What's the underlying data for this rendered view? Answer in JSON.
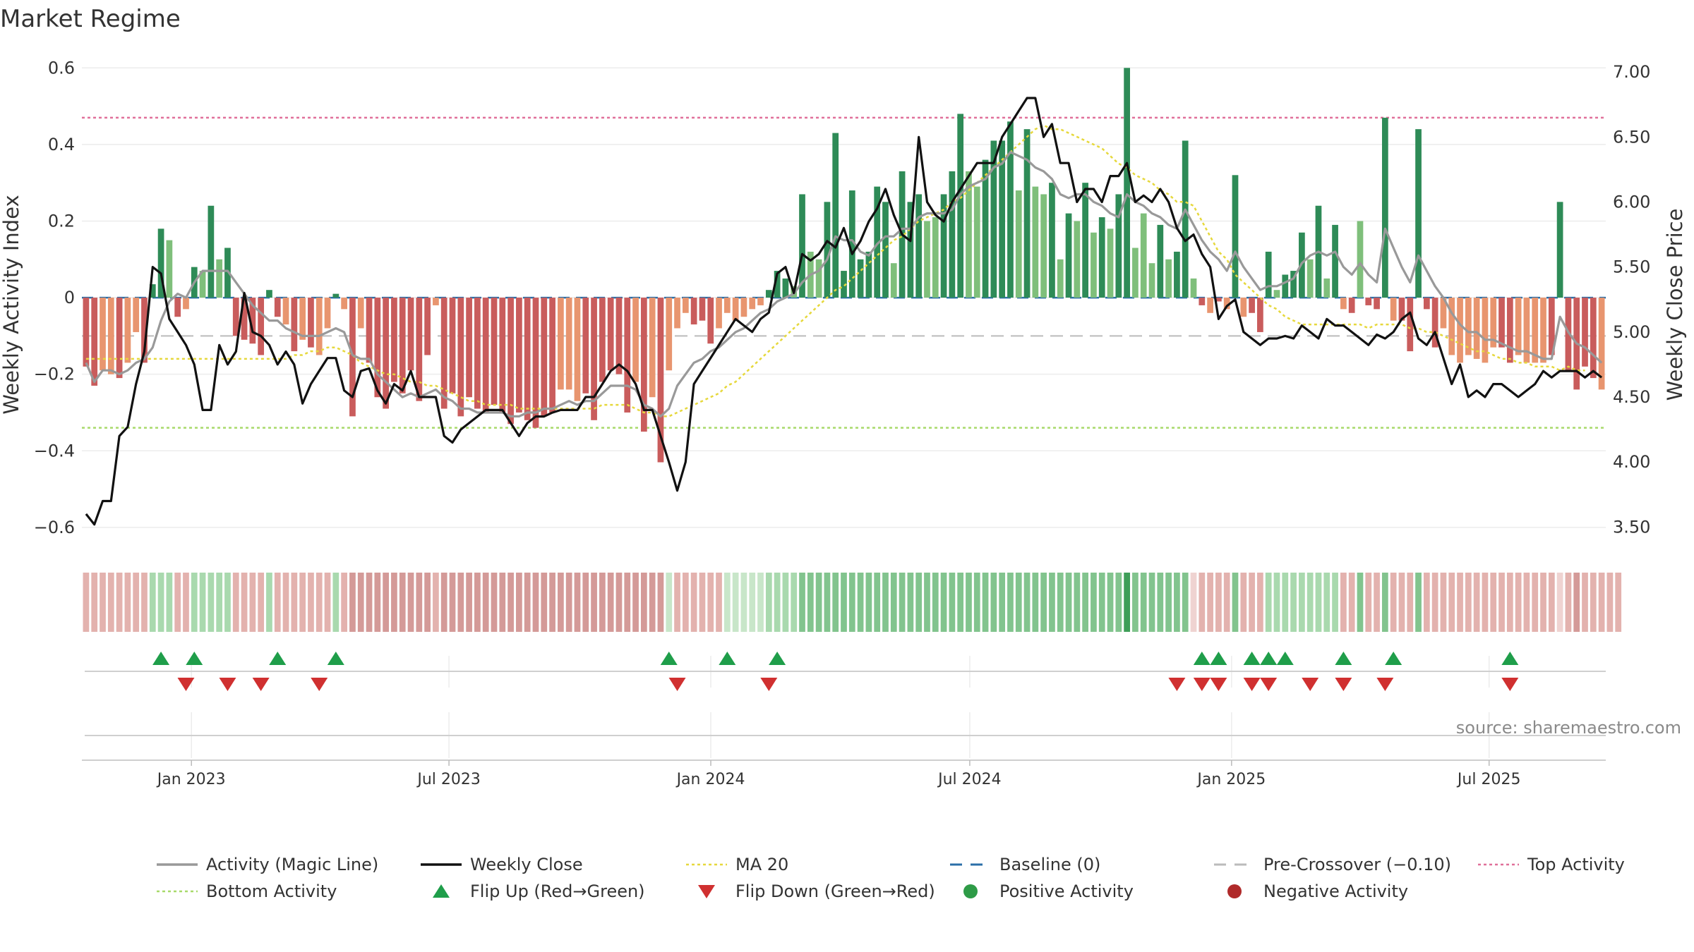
{
  "chart_data": {
    "type": "bar",
    "title": "Market Regime",
    "ylabel": "Weekly Activity Index",
    "y2label": "Weekly Close Price",
    "source": "source: sharemaestro.com",
    "ylim": [
      -0.65,
      0.63
    ],
    "y2lim": [
      3.35,
      7.12
    ],
    "yticks": [
      -0.6,
      -0.4,
      -0.2,
      0,
      0.2,
      0.4,
      0.6
    ],
    "ytick_labels": [
      "−0.6",
      "−0.4",
      "−0.2",
      "0",
      "0.2",
      "0.4",
      "0.6"
    ],
    "y2ticks": [
      3.5,
      4.0,
      4.5,
      5.0,
      5.5,
      6.0,
      6.5,
      7.0
    ],
    "y2tick_labels": [
      "3.50",
      "4.00",
      "4.50",
      "5.00",
      "5.50",
      "6.00",
      "6.50",
      "7.00"
    ],
    "x_start": "2022-10-16",
    "x_end": "2025-09-21",
    "xticks": [
      {
        "date": "2023-01-01",
        "label": "Jan 2023"
      },
      {
        "date": "2023-07-01",
        "label": "Jul 2023"
      },
      {
        "date": "2024-01-01",
        "label": "Jan 2024"
      },
      {
        "date": "2024-07-01",
        "label": "Jul 2024"
      },
      {
        "date": "2025-01-01",
        "label": "Jan 2025"
      },
      {
        "date": "2025-07-01",
        "label": "Jul 2025"
      }
    ],
    "top_activity": 0.47,
    "bottom_activity": -0.34,
    "pre_crossover": -0.1,
    "baseline": 0,
    "colors": {
      "pos_strong": "#2e8b57",
      "pos_light": "#7fbf7b",
      "neg_strong": "#c95c5c",
      "neg_light": "#e8956f",
      "magic": "#999999",
      "close": "#111111",
      "ma": "#e6d83c",
      "baseline": "#2b6fa8",
      "precross": "#bbbbbb",
      "top": "#e0709a",
      "bottom": "#a8d96a",
      "flip_up": "#1f9e4a",
      "flip_down": "#d03030"
    },
    "activity": [
      -0.18,
      -0.23,
      -0.19,
      -0.2,
      -0.21,
      -0.17,
      -0.09,
      -0.17,
      0.035,
      0.18,
      0.15,
      -0.05,
      -0.03,
      0.08,
      0.07,
      0.24,
      0.1,
      0.13,
      -0.1,
      -0.11,
      -0.12,
      -0.15,
      0.02,
      -0.05,
      -0.07,
      -0.14,
      -0.11,
      -0.13,
      -0.15,
      -0.08,
      0.01,
      -0.03,
      -0.31,
      -0.08,
      -0.17,
      -0.26,
      -0.29,
      -0.22,
      -0.25,
      -0.19,
      -0.27,
      -0.15,
      -0.02,
      -0.29,
      -0.25,
      -0.31,
      -0.26,
      -0.29,
      -0.3,
      -0.28,
      -0.3,
      -0.33,
      -0.3,
      -0.32,
      -0.34,
      -0.31,
      -0.3,
      -0.24,
      -0.24,
      -0.27,
      -0.25,
      -0.32,
      -0.22,
      -0.19,
      -0.2,
      -0.3,
      -0.22,
      -0.35,
      -0.26,
      -0.43,
      -0.19,
      -0.08,
      -0.04,
      -0.07,
      -0.06,
      -0.12,
      -0.08,
      -0.04,
      -0.06,
      -0.05,
      -0.03,
      -0.02,
      0.02,
      0.07,
      0.05,
      0.03,
      0.27,
      0.12,
      0.1,
      0.25,
      0.43,
      0.07,
      0.28,
      0.1,
      0.12,
      0.29,
      0.25,
      0.09,
      0.33,
      0.25,
      0.27,
      0.2,
      0.21,
      0.27,
      0.33,
      0.48,
      0.33,
      0.29,
      0.36,
      0.41,
      0.41,
      0.46,
      0.28,
      0.44,
      0.29,
      0.27,
      0.3,
      0.1,
      0.22,
      0.2,
      0.3,
      0.17,
      0.21,
      0.18,
      0.27,
      0.6,
      0.13,
      0.22,
      0.09,
      0.19,
      0.1,
      0.12,
      0.41,
      0.05,
      -0.02,
      -0.04,
      -0.01,
      -0.03,
      0.32,
      -0.05,
      -0.04,
      -0.09,
      0.12,
      0.02,
      0.06,
      0.07,
      0.17,
      0.1,
      0.24,
      0.05,
      0.19,
      -0.03,
      -0.04,
      0.2,
      -0.02,
      -0.03,
      0.47,
      -0.06,
      -0.06,
      -0.14,
      0.44,
      -0.03,
      -0.13,
      -0.08,
      -0.15,
      -0.17,
      -0.15,
      -0.16,
      -0.17,
      -0.13,
      -0.13,
      -0.17,
      -0.15,
      -0.17,
      -0.17,
      -0.17,
      -0.15,
      0.25,
      -0.19,
      -0.24,
      -0.18,
      -0.21,
      -0.24
    ],
    "activity_strong": [
      true,
      true,
      false,
      false,
      true,
      false,
      false,
      true,
      true,
      true,
      false,
      true,
      false,
      true,
      false,
      true,
      false,
      true,
      true,
      true,
      true,
      true,
      true,
      true,
      false,
      true,
      false,
      true,
      false,
      false,
      true,
      false,
      true,
      false,
      true,
      true,
      true,
      true,
      true,
      true,
      true,
      true,
      false,
      true,
      true,
      true,
      true,
      true,
      true,
      true,
      true,
      true,
      true,
      true,
      true,
      true,
      true,
      false,
      false,
      false,
      true,
      true,
      true,
      true,
      true,
      true,
      false,
      true,
      false,
      true,
      false,
      false,
      false,
      true,
      true,
      true,
      false,
      false,
      false,
      false,
      false,
      false,
      true,
      true,
      true,
      false,
      true,
      false,
      false,
      true,
      true,
      true,
      true,
      true,
      true,
      true,
      true,
      false,
      true,
      true,
      true,
      false,
      false,
      true,
      true,
      true,
      false,
      false,
      true,
      true,
      true,
      true,
      false,
      true,
      false,
      false,
      true,
      false,
      true,
      false,
      true,
      false,
      true,
      false,
      true,
      true,
      false,
      false,
      false,
      true,
      false,
      true,
      true,
      false,
      true,
      false,
      true,
      false,
      true,
      false,
      true,
      true,
      true,
      false,
      true,
      true,
      true,
      false,
      true,
      false,
      true,
      false,
      true,
      false,
      true,
      true,
      true,
      false,
      true,
      true,
      true,
      true,
      true,
      false,
      false,
      false,
      false,
      false,
      false,
      false,
      true,
      true,
      false,
      false,
      false,
      false,
      true,
      true,
      true,
      true,
      true,
      true
    ],
    "magic_line": [
      -0.17,
      -0.22,
      -0.19,
      -0.19,
      -0.2,
      -0.19,
      -0.17,
      -0.16,
      -0.13,
      -0.06,
      -0.01,
      0.01,
      0.0,
      0.04,
      0.07,
      0.07,
      0.07,
      0.07,
      0.04,
      0.01,
      -0.02,
      -0.04,
      -0.06,
      -0.06,
      -0.08,
      -0.09,
      -0.1,
      -0.1,
      -0.1,
      -0.09,
      -0.08,
      -0.09,
      -0.15,
      -0.16,
      -0.16,
      -0.2,
      -0.22,
      -0.24,
      -0.26,
      -0.25,
      -0.26,
      -0.25,
      -0.24,
      -0.26,
      -0.27,
      -0.29,
      -0.29,
      -0.3,
      -0.3,
      -0.3,
      -0.3,
      -0.31,
      -0.31,
      -0.3,
      -0.3,
      -0.29,
      -0.29,
      -0.28,
      -0.27,
      -0.28,
      -0.27,
      -0.27,
      -0.25,
      -0.23,
      -0.23,
      -0.23,
      -0.24,
      -0.28,
      -0.29,
      -0.31,
      -0.29,
      -0.23,
      -0.2,
      -0.17,
      -0.16,
      -0.14,
      -0.13,
      -0.11,
      -0.09,
      -0.08,
      -0.06,
      -0.04,
      -0.03,
      -0.01,
      0.0,
      0.01,
      0.04,
      0.06,
      0.07,
      0.1,
      0.16,
      0.15,
      0.15,
      0.12,
      0.11,
      0.14,
      0.16,
      0.16,
      0.18,
      0.18,
      0.21,
      0.22,
      0.22,
      0.22,
      0.23,
      0.27,
      0.29,
      0.3,
      0.31,
      0.34,
      0.35,
      0.38,
      0.37,
      0.36,
      0.34,
      0.33,
      0.31,
      0.27,
      0.26,
      0.27,
      0.27,
      0.25,
      0.24,
      0.22,
      0.21,
      0.27,
      0.25,
      0.24,
      0.22,
      0.21,
      0.19,
      0.18,
      0.23,
      0.19,
      0.15,
      0.12,
      0.1,
      0.07,
      0.12,
      0.08,
      0.05,
      0.02,
      0.03,
      0.03,
      0.04,
      0.05,
      0.09,
      0.11,
      0.12,
      0.11,
      0.12,
      0.08,
      0.06,
      0.09,
      0.06,
      0.04,
      0.18,
      0.13,
      0.08,
      0.04,
      0.11,
      0.07,
      0.03,
      0.0,
      -0.04,
      -0.07,
      -0.09,
      -0.09,
      -0.11,
      -0.11,
      -0.12,
      -0.13,
      -0.14,
      -0.14,
      -0.15,
      -0.16,
      -0.16,
      -0.05,
      -0.09,
      -0.12,
      -0.13,
      -0.15,
      -0.17
    ],
    "weekly_close": [
      3.6,
      3.52,
      3.7,
      3.7,
      4.2,
      4.27,
      4.6,
      4.85,
      5.5,
      5.45,
      5.1,
      5.0,
      4.9,
      4.75,
      4.4,
      4.4,
      4.9,
      4.75,
      4.85,
      5.3,
      5.0,
      4.97,
      4.9,
      4.75,
      4.85,
      4.75,
      4.45,
      4.6,
      4.7,
      4.8,
      4.8,
      4.55,
      4.5,
      4.7,
      4.72,
      4.55,
      4.45,
      4.6,
      4.55,
      4.7,
      4.5,
      4.5,
      4.5,
      4.2,
      4.15,
      4.25,
      4.3,
      4.35,
      4.4,
      4.4,
      4.4,
      4.3,
      4.2,
      4.3,
      4.35,
      4.35,
      4.38,
      4.4,
      4.4,
      4.4,
      4.5,
      4.5,
      4.6,
      4.7,
      4.75,
      4.7,
      4.6,
      4.4,
      4.4,
      4.2,
      4.0,
      3.78,
      4.0,
      4.6,
      4.7,
      4.8,
      4.9,
      5.0,
      5.1,
      5.05,
      5.0,
      5.1,
      5.15,
      5.45,
      5.5,
      5.3,
      5.6,
      5.55,
      5.6,
      5.7,
      5.65,
      5.8,
      5.6,
      5.7,
      5.85,
      5.95,
      6.1,
      5.9,
      5.75,
      5.7,
      6.5,
      6.0,
      5.9,
      5.85,
      6.0,
      6.1,
      6.2,
      6.3,
      6.3,
      6.3,
      6.5,
      6.6,
      6.7,
      6.8,
      6.8,
      6.5,
      6.6,
      6.3,
      6.3,
      6.0,
      6.1,
      6.1,
      6.0,
      6.2,
      6.2,
      6.3,
      6.0,
      6.05,
      6.0,
      6.1,
      6.0,
      5.8,
      5.7,
      5.75,
      5.6,
      5.5,
      5.1,
      5.2,
      5.25,
      5.0,
      4.95,
      4.9,
      4.95,
      4.95,
      4.97,
      4.95,
      5.05,
      5.0,
      4.95,
      5.1,
      5.05,
      5.05,
      5.0,
      4.95,
      4.9,
      4.98,
      4.95,
      5.0,
      5.1,
      5.15,
      4.95,
      4.9,
      5.0,
      4.8,
      4.6,
      4.75,
      4.5,
      4.55,
      4.5,
      4.6,
      4.6,
      4.55,
      4.5,
      4.55,
      4.6,
      4.7,
      4.65,
      4.7,
      4.7,
      4.7,
      4.65,
      4.7,
      4.65
    ],
    "ma20": [
      -0.16,
      -0.16,
      -0.16,
      -0.16,
      -0.16,
      -0.16,
      -0.16,
      -0.16,
      -0.16,
      -0.16,
      -0.16,
      -0.16,
      -0.16,
      -0.16,
      -0.16,
      -0.16,
      -0.16,
      -0.16,
      -0.16,
      -0.16,
      -0.16,
      -0.16,
      -0.16,
      -0.16,
      -0.16,
      -0.15,
      -0.15,
      -0.14,
      -0.14,
      -0.13,
      -0.13,
      -0.14,
      -0.15,
      -0.17,
      -0.18,
      -0.19,
      -0.2,
      -0.2,
      -0.21,
      -0.22,
      -0.22,
      -0.23,
      -0.23,
      -0.24,
      -0.25,
      -0.26,
      -0.27,
      -0.27,
      -0.28,
      -0.28,
      -0.28,
      -0.28,
      -0.29,
      -0.29,
      -0.29,
      -0.29,
      -0.29,
      -0.29,
      -0.29,
      -0.29,
      -0.29,
      -0.29,
      -0.28,
      -0.28,
      -0.28,
      -0.28,
      -0.29,
      -0.3,
      -0.3,
      -0.31,
      -0.31,
      -0.3,
      -0.29,
      -0.28,
      -0.27,
      -0.26,
      -0.25,
      -0.23,
      -0.22,
      -0.2,
      -0.18,
      -0.16,
      -0.14,
      -0.12,
      -0.1,
      -0.08,
      -0.06,
      -0.04,
      -0.02,
      0.0,
      0.02,
      0.03,
      0.05,
      0.07,
      0.09,
      0.11,
      0.13,
      0.15,
      0.16,
      0.18,
      0.2,
      0.21,
      0.22,
      0.23,
      0.25,
      0.26,
      0.28,
      0.3,
      0.32,
      0.34,
      0.36,
      0.38,
      0.4,
      0.42,
      0.44,
      0.45,
      0.44,
      0.44,
      0.43,
      0.42,
      0.41,
      0.4,
      0.39,
      0.37,
      0.35,
      0.34,
      0.32,
      0.31,
      0.3,
      0.28,
      0.27,
      0.25,
      0.25,
      0.24,
      0.2,
      0.16,
      0.12,
      0.1,
      0.06,
      0.04,
      0.02,
      0.0,
      -0.02,
      -0.03,
      -0.05,
      -0.06,
      -0.07,
      -0.07,
      -0.07,
      -0.07,
      -0.07,
      -0.07,
      -0.07,
      -0.07,
      -0.08,
      -0.07,
      -0.07,
      -0.07,
      -0.07,
      -0.08,
      -0.08,
      -0.09,
      -0.09,
      -0.1,
      -0.11,
      -0.12,
      -0.13,
      -0.14,
      -0.14,
      -0.15,
      -0.16,
      -0.16,
      -0.17,
      -0.17,
      -0.18,
      -0.18,
      -0.18,
      -0.19,
      -0.18,
      -0.19,
      -0.19
    ],
    "regime_strip": [
      1,
      1,
      1,
      1,
      1,
      1,
      1,
      1,
      2,
      2,
      2,
      1,
      1,
      2,
      2,
      2,
      2,
      2,
      1,
      1,
      1,
      1,
      2,
      1,
      1,
      1,
      1,
      1,
      1,
      1,
      2,
      1,
      3,
      3,
      3,
      3,
      3,
      3,
      3,
      3,
      3,
      3,
      1,
      3,
      3,
      3,
      3,
      3,
      3,
      3,
      3,
      3,
      3,
      3,
      3,
      3,
      3,
      3,
      3,
      3,
      3,
      3,
      3,
      3,
      3,
      3,
      3,
      3,
      3,
      3,
      2,
      1,
      1,
      1,
      1,
      1,
      1,
      2,
      2,
      2,
      2,
      2,
      2,
      2,
      2,
      2,
      3,
      3,
      3,
      3,
      3,
      3,
      3,
      3,
      3,
      3,
      3,
      3,
      3,
      3,
      3,
      3,
      3,
      3,
      3,
      3,
      3,
      3,
      3,
      3,
      3,
      3,
      3,
      3,
      3,
      3,
      3,
      3,
      3,
      3,
      3,
      3,
      3,
      3,
      3,
      4,
      3,
      3,
      3,
      3,
      3,
      3,
      3,
      1,
      1,
      1,
      1,
      1,
      3,
      1,
      1,
      1,
      2,
      2,
      2,
      2,
      2,
      2,
      2,
      2,
      2,
      1,
      1,
      3,
      1,
      1,
      3,
      1,
      1,
      1,
      3,
      1,
      1,
      1,
      1,
      1,
      1,
      1,
      1,
      1,
      1,
      1,
      1,
      1,
      1,
      1,
      1,
      1,
      1,
      3,
      1,
      1,
      1,
      1,
      1
    ],
    "flip_up_weeks": [
      9,
      13,
      23,
      30,
      70,
      77,
      83,
      134,
      136,
      140,
      142,
      144,
      151,
      157,
      171
    ],
    "flip_down_weeks": [
      12,
      17,
      21,
      28,
      71,
      82,
      131,
      134,
      136,
      140,
      142,
      147,
      151,
      156,
      171
    ],
    "legend": [
      {
        "label": "Activity (Magic Line)",
        "kind": "line",
        "color": "#999999"
      },
      {
        "label": "Weekly Close",
        "kind": "line",
        "color": "#111111"
      },
      {
        "label": "MA 20",
        "kind": "dotted",
        "color": "#e6d83c"
      },
      {
        "label": "Baseline (0)",
        "kind": "dashed",
        "color": "#2b6fa8"
      },
      {
        "label": "Pre-Crossover (−0.10)",
        "kind": "dashed",
        "color": "#bbbbbb"
      },
      {
        "label": "Top Activity",
        "kind": "dotted",
        "color": "#e0709a"
      },
      {
        "label": "Bottom Activity",
        "kind": "dotted",
        "color": "#a8d96a"
      },
      {
        "label": "Flip Up (Red→Green)",
        "kind": "tri-up",
        "color": "#1f9e4a"
      },
      {
        "label": "Flip Down (Green→Red)",
        "kind": "tri-down",
        "color": "#d03030"
      },
      {
        "label": "Positive Activity",
        "kind": "dot",
        "color": "#2e9b47"
      },
      {
        "label": "Negative Activity",
        "kind": "dot",
        "color": "#b02a2a"
      }
    ]
  }
}
